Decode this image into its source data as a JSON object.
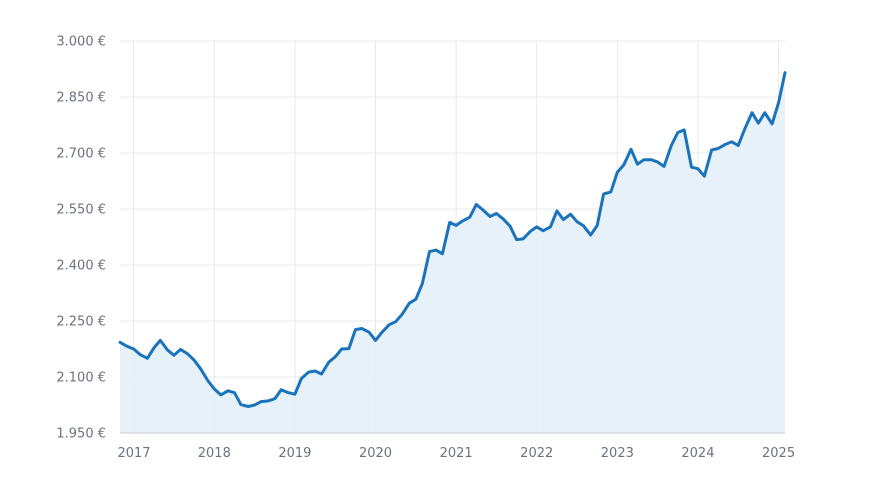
{
  "chart_data": {
    "type": "area",
    "title": "",
    "xlabel": "",
    "ylabel": "",
    "x_unit": "year (decimal)",
    "xlim": [
      2016.83,
      2025.08
    ],
    "ylim": [
      1950,
      3000
    ],
    "y_ticks": [
      {
        "value": 1950,
        "label": "1.950 €"
      },
      {
        "value": 2100,
        "label": "2.100 €"
      },
      {
        "value": 2250,
        "label": "2.250 €"
      },
      {
        "value": 2400,
        "label": "2.400 €"
      },
      {
        "value": 2550,
        "label": "2.550 €"
      },
      {
        "value": 2700,
        "label": "2.700 €"
      },
      {
        "value": 2850,
        "label": "2.850 €"
      },
      {
        "value": 3000,
        "label": "3.000 €"
      }
    ],
    "x_ticks": [
      {
        "value": 2017,
        "label": "2017"
      },
      {
        "value": 2018,
        "label": "2018"
      },
      {
        "value": 2019,
        "label": "2019"
      },
      {
        "value": 2020,
        "label": "2020"
      },
      {
        "value": 2021,
        "label": "2021"
      },
      {
        "value": 2022,
        "label": "2022"
      },
      {
        "value": 2023,
        "label": "2023"
      },
      {
        "value": 2024,
        "label": "2024"
      },
      {
        "value": 2025,
        "label": "2025"
      }
    ],
    "grid": true,
    "line_color": "#1b74bb",
    "fill_color": "#e3f0f9",
    "series": [
      {
        "points": [
          [
            2016.83,
            2193
          ],
          [
            2016.92,
            2182
          ],
          [
            2017.0,
            2175
          ],
          [
            2017.08,
            2160
          ],
          [
            2017.17,
            2150
          ],
          [
            2017.25,
            2178
          ],
          [
            2017.33,
            2198
          ],
          [
            2017.42,
            2172
          ],
          [
            2017.5,
            2158
          ],
          [
            2017.58,
            2174
          ],
          [
            2017.67,
            2162
          ],
          [
            2017.75,
            2145
          ],
          [
            2017.83,
            2122
          ],
          [
            2017.92,
            2090
          ],
          [
            2018.0,
            2068
          ],
          [
            2018.08,
            2052
          ],
          [
            2018.17,
            2063
          ],
          [
            2018.25,
            2058
          ],
          [
            2018.33,
            2026
          ],
          [
            2018.42,
            2021
          ],
          [
            2018.5,
            2025
          ],
          [
            2018.58,
            2034
          ],
          [
            2018.67,
            2036
          ],
          [
            2018.75,
            2042
          ],
          [
            2018.83,
            2066
          ],
          [
            2018.92,
            2058
          ],
          [
            2019.0,
            2054
          ],
          [
            2019.08,
            2096
          ],
          [
            2019.17,
            2113
          ],
          [
            2019.25,
            2116
          ],
          [
            2019.33,
            2108
          ],
          [
            2019.42,
            2140
          ],
          [
            2019.5,
            2154
          ],
          [
            2019.58,
            2175
          ],
          [
            2019.67,
            2176
          ],
          [
            2019.75,
            2227
          ],
          [
            2019.83,
            2230
          ],
          [
            2019.92,
            2220
          ],
          [
            2020.0,
            2198
          ],
          [
            2020.08,
            2220
          ],
          [
            2020.17,
            2240
          ],
          [
            2020.25,
            2248
          ],
          [
            2020.33,
            2268
          ],
          [
            2020.42,
            2298
          ],
          [
            2020.5,
            2308
          ],
          [
            2020.58,
            2350
          ],
          [
            2020.67,
            2436
          ],
          [
            2020.75,
            2440
          ],
          [
            2020.83,
            2430
          ],
          [
            2020.92,
            2514
          ],
          [
            2021.0,
            2506
          ],
          [
            2021.08,
            2518
          ],
          [
            2021.17,
            2528
          ],
          [
            2021.25,
            2562
          ],
          [
            2021.33,
            2548
          ],
          [
            2021.42,
            2530
          ],
          [
            2021.5,
            2538
          ],
          [
            2021.58,
            2524
          ],
          [
            2021.67,
            2504
          ],
          [
            2021.75,
            2468
          ],
          [
            2021.83,
            2470
          ],
          [
            2021.92,
            2490
          ],
          [
            2022.0,
            2502
          ],
          [
            2022.08,
            2492
          ],
          [
            2022.17,
            2502
          ],
          [
            2022.25,
            2545
          ],
          [
            2022.33,
            2522
          ],
          [
            2022.42,
            2536
          ],
          [
            2022.5,
            2516
          ],
          [
            2022.58,
            2505
          ],
          [
            2022.67,
            2480
          ],
          [
            2022.75,
            2506
          ],
          [
            2022.83,
            2590
          ],
          [
            2022.92,
            2596
          ],
          [
            2023.0,
            2648
          ],
          [
            2023.08,
            2668
          ],
          [
            2023.17,
            2710
          ],
          [
            2023.25,
            2670
          ],
          [
            2023.33,
            2682
          ],
          [
            2023.42,
            2682
          ],
          [
            2023.5,
            2676
          ],
          [
            2023.58,
            2664
          ],
          [
            2023.67,
            2720
          ],
          [
            2023.75,
            2755
          ],
          [
            2023.83,
            2762
          ],
          [
            2023.92,
            2662
          ],
          [
            2024.0,
            2658
          ],
          [
            2024.08,
            2638
          ],
          [
            2024.17,
            2708
          ],
          [
            2024.25,
            2712
          ],
          [
            2024.33,
            2722
          ],
          [
            2024.42,
            2730
          ],
          [
            2024.5,
            2720
          ],
          [
            2024.58,
            2764
          ],
          [
            2024.67,
            2808
          ],
          [
            2024.75,
            2780
          ],
          [
            2024.83,
            2808
          ],
          [
            2024.92,
            2778
          ],
          [
            2025.0,
            2835
          ],
          [
            2025.08,
            2915
          ]
        ]
      }
    ]
  }
}
